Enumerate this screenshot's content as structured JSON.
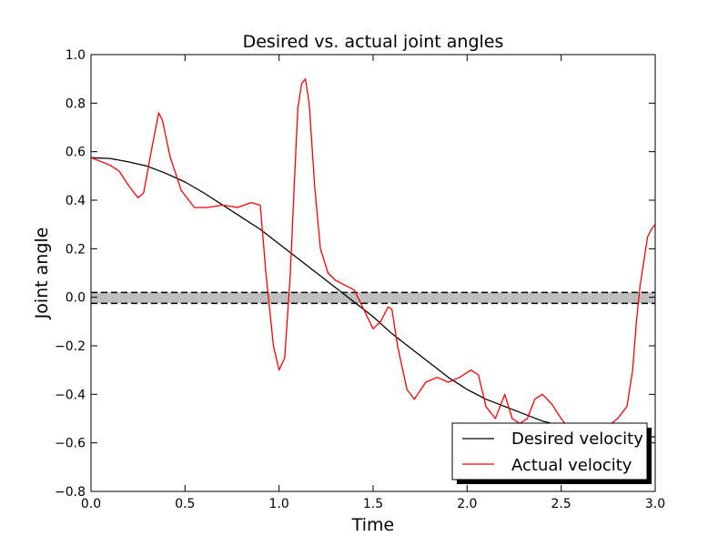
{
  "chart_data": {
    "type": "line",
    "title": "Desired vs. actual joint angles",
    "xlabel": "Time",
    "ylabel": "Joint angle",
    "xlim": [
      0.0,
      3.0
    ],
    "ylim": [
      -0.8,
      1.0
    ],
    "xticks": [
      "0.0",
      "0.5",
      "1.0",
      "1.5",
      "2.0",
      "2.5",
      "3.0"
    ],
    "yticks": [
      "1.0",
      "0.8",
      "0.6",
      "0.4",
      "0.2",
      "0.0",
      "−0.2",
      "−0.4",
      "−0.6",
      "−0.8"
    ],
    "xtick_values": [
      0.0,
      0.5,
      1.0,
      1.5,
      2.0,
      2.5,
      3.0
    ],
    "ytick_values": [
      1.0,
      0.8,
      0.6,
      0.4,
      0.2,
      0.0,
      -0.2,
      -0.4,
      -0.6,
      -0.8
    ],
    "band": {
      "lower": -0.025,
      "upper": 0.02,
      "color": "#bfbfbf"
    },
    "series": [
      {
        "name": "Desired velocity",
        "color": "#000000",
        "x": [
          0.0,
          0.1,
          0.2,
          0.3,
          0.4,
          0.5,
          0.6,
          0.7,
          0.8,
          0.9,
          1.0,
          1.1,
          1.2,
          1.3,
          1.4,
          1.5,
          1.6,
          1.7,
          1.8,
          1.9,
          2.0,
          2.1,
          2.2,
          2.3,
          2.4,
          2.5,
          2.6,
          2.7,
          2.8,
          2.9,
          3.0
        ],
        "y": [
          0.575,
          0.572,
          0.558,
          0.54,
          0.51,
          0.475,
          0.43,
          0.38,
          0.33,
          0.28,
          0.22,
          0.16,
          0.1,
          0.04,
          -0.02,
          -0.08,
          -0.15,
          -0.21,
          -0.27,
          -0.33,
          -0.38,
          -0.42,
          -0.45,
          -0.48,
          -0.51,
          -0.53,
          -0.55,
          -0.56,
          -0.57,
          -0.575,
          -0.575
        ]
      },
      {
        "name": "Actual velocity",
        "color": "#ff0000",
        "x": [
          0.0,
          0.05,
          0.1,
          0.15,
          0.2,
          0.25,
          0.28,
          0.32,
          0.36,
          0.38,
          0.42,
          0.48,
          0.55,
          0.62,
          0.7,
          0.78,
          0.85,
          0.9,
          0.93,
          0.97,
          1.0,
          1.03,
          1.06,
          1.08,
          1.1,
          1.12,
          1.14,
          1.16,
          1.19,
          1.22,
          1.26,
          1.3,
          1.35,
          1.4,
          1.45,
          1.5,
          1.54,
          1.58,
          1.6,
          1.63,
          1.68,
          1.72,
          1.78,
          1.84,
          1.9,
          1.96,
          2.02,
          2.06,
          2.1,
          2.15,
          2.2,
          2.24,
          2.28,
          2.32,
          2.36,
          2.4,
          2.45,
          2.5,
          2.55,
          2.6,
          2.65,
          2.7,
          2.75,
          2.8,
          2.85,
          2.88,
          2.9,
          2.92,
          2.94,
          2.96,
          2.98,
          3.0
        ],
        "y": [
          0.575,
          0.56,
          0.545,
          0.52,
          0.46,
          0.41,
          0.43,
          0.6,
          0.76,
          0.73,
          0.58,
          0.44,
          0.37,
          0.37,
          0.38,
          0.37,
          0.39,
          0.38,
          0.1,
          -0.2,
          -0.3,
          -0.25,
          0.1,
          0.45,
          0.78,
          0.88,
          0.9,
          0.8,
          0.45,
          0.2,
          0.1,
          0.07,
          0.05,
          0.03,
          -0.05,
          -0.13,
          -0.1,
          -0.04,
          -0.05,
          -0.2,
          -0.38,
          -0.42,
          -0.35,
          -0.33,
          -0.35,
          -0.33,
          -0.3,
          -0.32,
          -0.45,
          -0.5,
          -0.4,
          -0.5,
          -0.52,
          -0.5,
          -0.42,
          -0.4,
          -0.44,
          -0.5,
          -0.55,
          -0.6,
          -0.6,
          -0.57,
          -0.53,
          -0.5,
          -0.45,
          -0.3,
          -0.1,
          0.05,
          0.15,
          0.25,
          0.28,
          0.3
        ]
      }
    ],
    "legend": {
      "placement": "lower-right",
      "entries": [
        "Desired velocity",
        "Actual velocity"
      ]
    },
    "grid": false
  }
}
